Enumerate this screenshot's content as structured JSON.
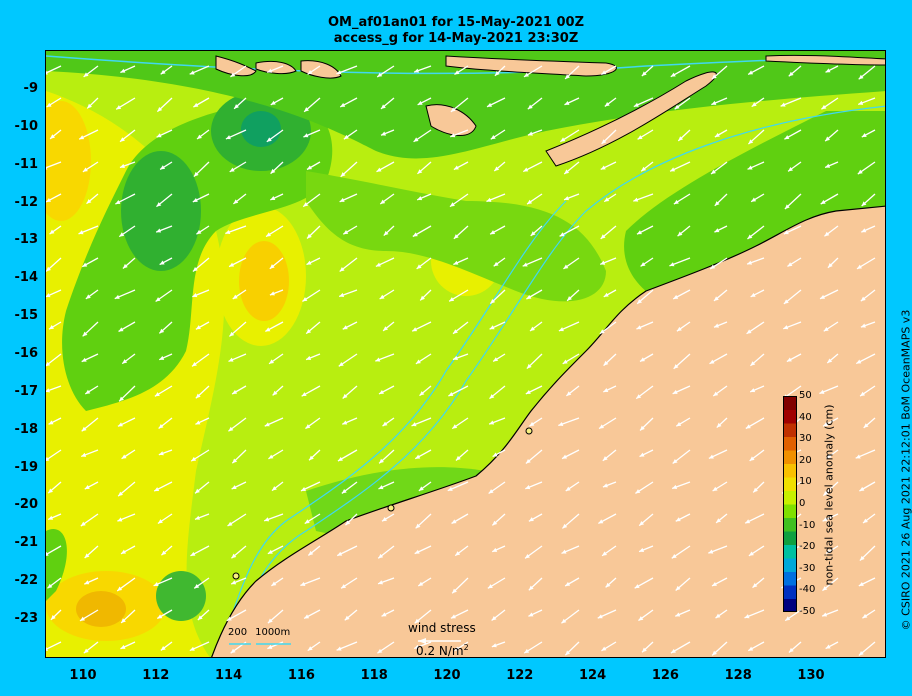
{
  "title_line1": "OM_af01an01 for 15-May-2021 00Z",
  "title_line2": "access_g for 14-May-2021 23:30Z",
  "credit": "© CSIRO 2021   26 Aug 2021 22:12:01 BoM OceanMAPS v3",
  "axes": {
    "lon_ticks": [
      "110",
      "112",
      "114",
      "116",
      "118",
      "120",
      "122",
      "124",
      "126",
      "128",
      "130"
    ],
    "lat_ticks": [
      "-9",
      "-10",
      "-11",
      "-12",
      "-13",
      "-14",
      "-15",
      "-16",
      "-17",
      "-18",
      "-19",
      "-20",
      "-21",
      "-22",
      "-23"
    ],
    "lon_range": [
      109,
      132
    ],
    "lat_range": [
      -24,
      -8
    ]
  },
  "colorbar": {
    "title": "non-tidal sea level anomaly (cm)",
    "ticks": [
      "50",
      "40",
      "30",
      "20",
      "10",
      "0",
      "-10",
      "-20",
      "-30",
      "-40",
      "-50"
    ],
    "range": [
      -50,
      50
    ],
    "colors": [
      "#00007f",
      "#0030c0",
      "#0070e0",
      "#00a8d8",
      "#00c0a0",
      "#10a040",
      "#40c020",
      "#80e000",
      "#c8f000",
      "#f0e000",
      "#f8c000",
      "#f09000",
      "#e06000",
      "#c03000",
      "#a00000",
      "#800000"
    ]
  },
  "wind_legend": {
    "label": "wind stress",
    "scale_value": "0.2 N/m",
    "scale_sup": "2"
  },
  "bathymetry_legend": {
    "levels": [
      "200",
      "1000m"
    ]
  },
  "colors": {
    "land": "#f8c898",
    "coast": "#000000",
    "isobath": "#40d8f0",
    "frame": "#00c8ff"
  }
}
